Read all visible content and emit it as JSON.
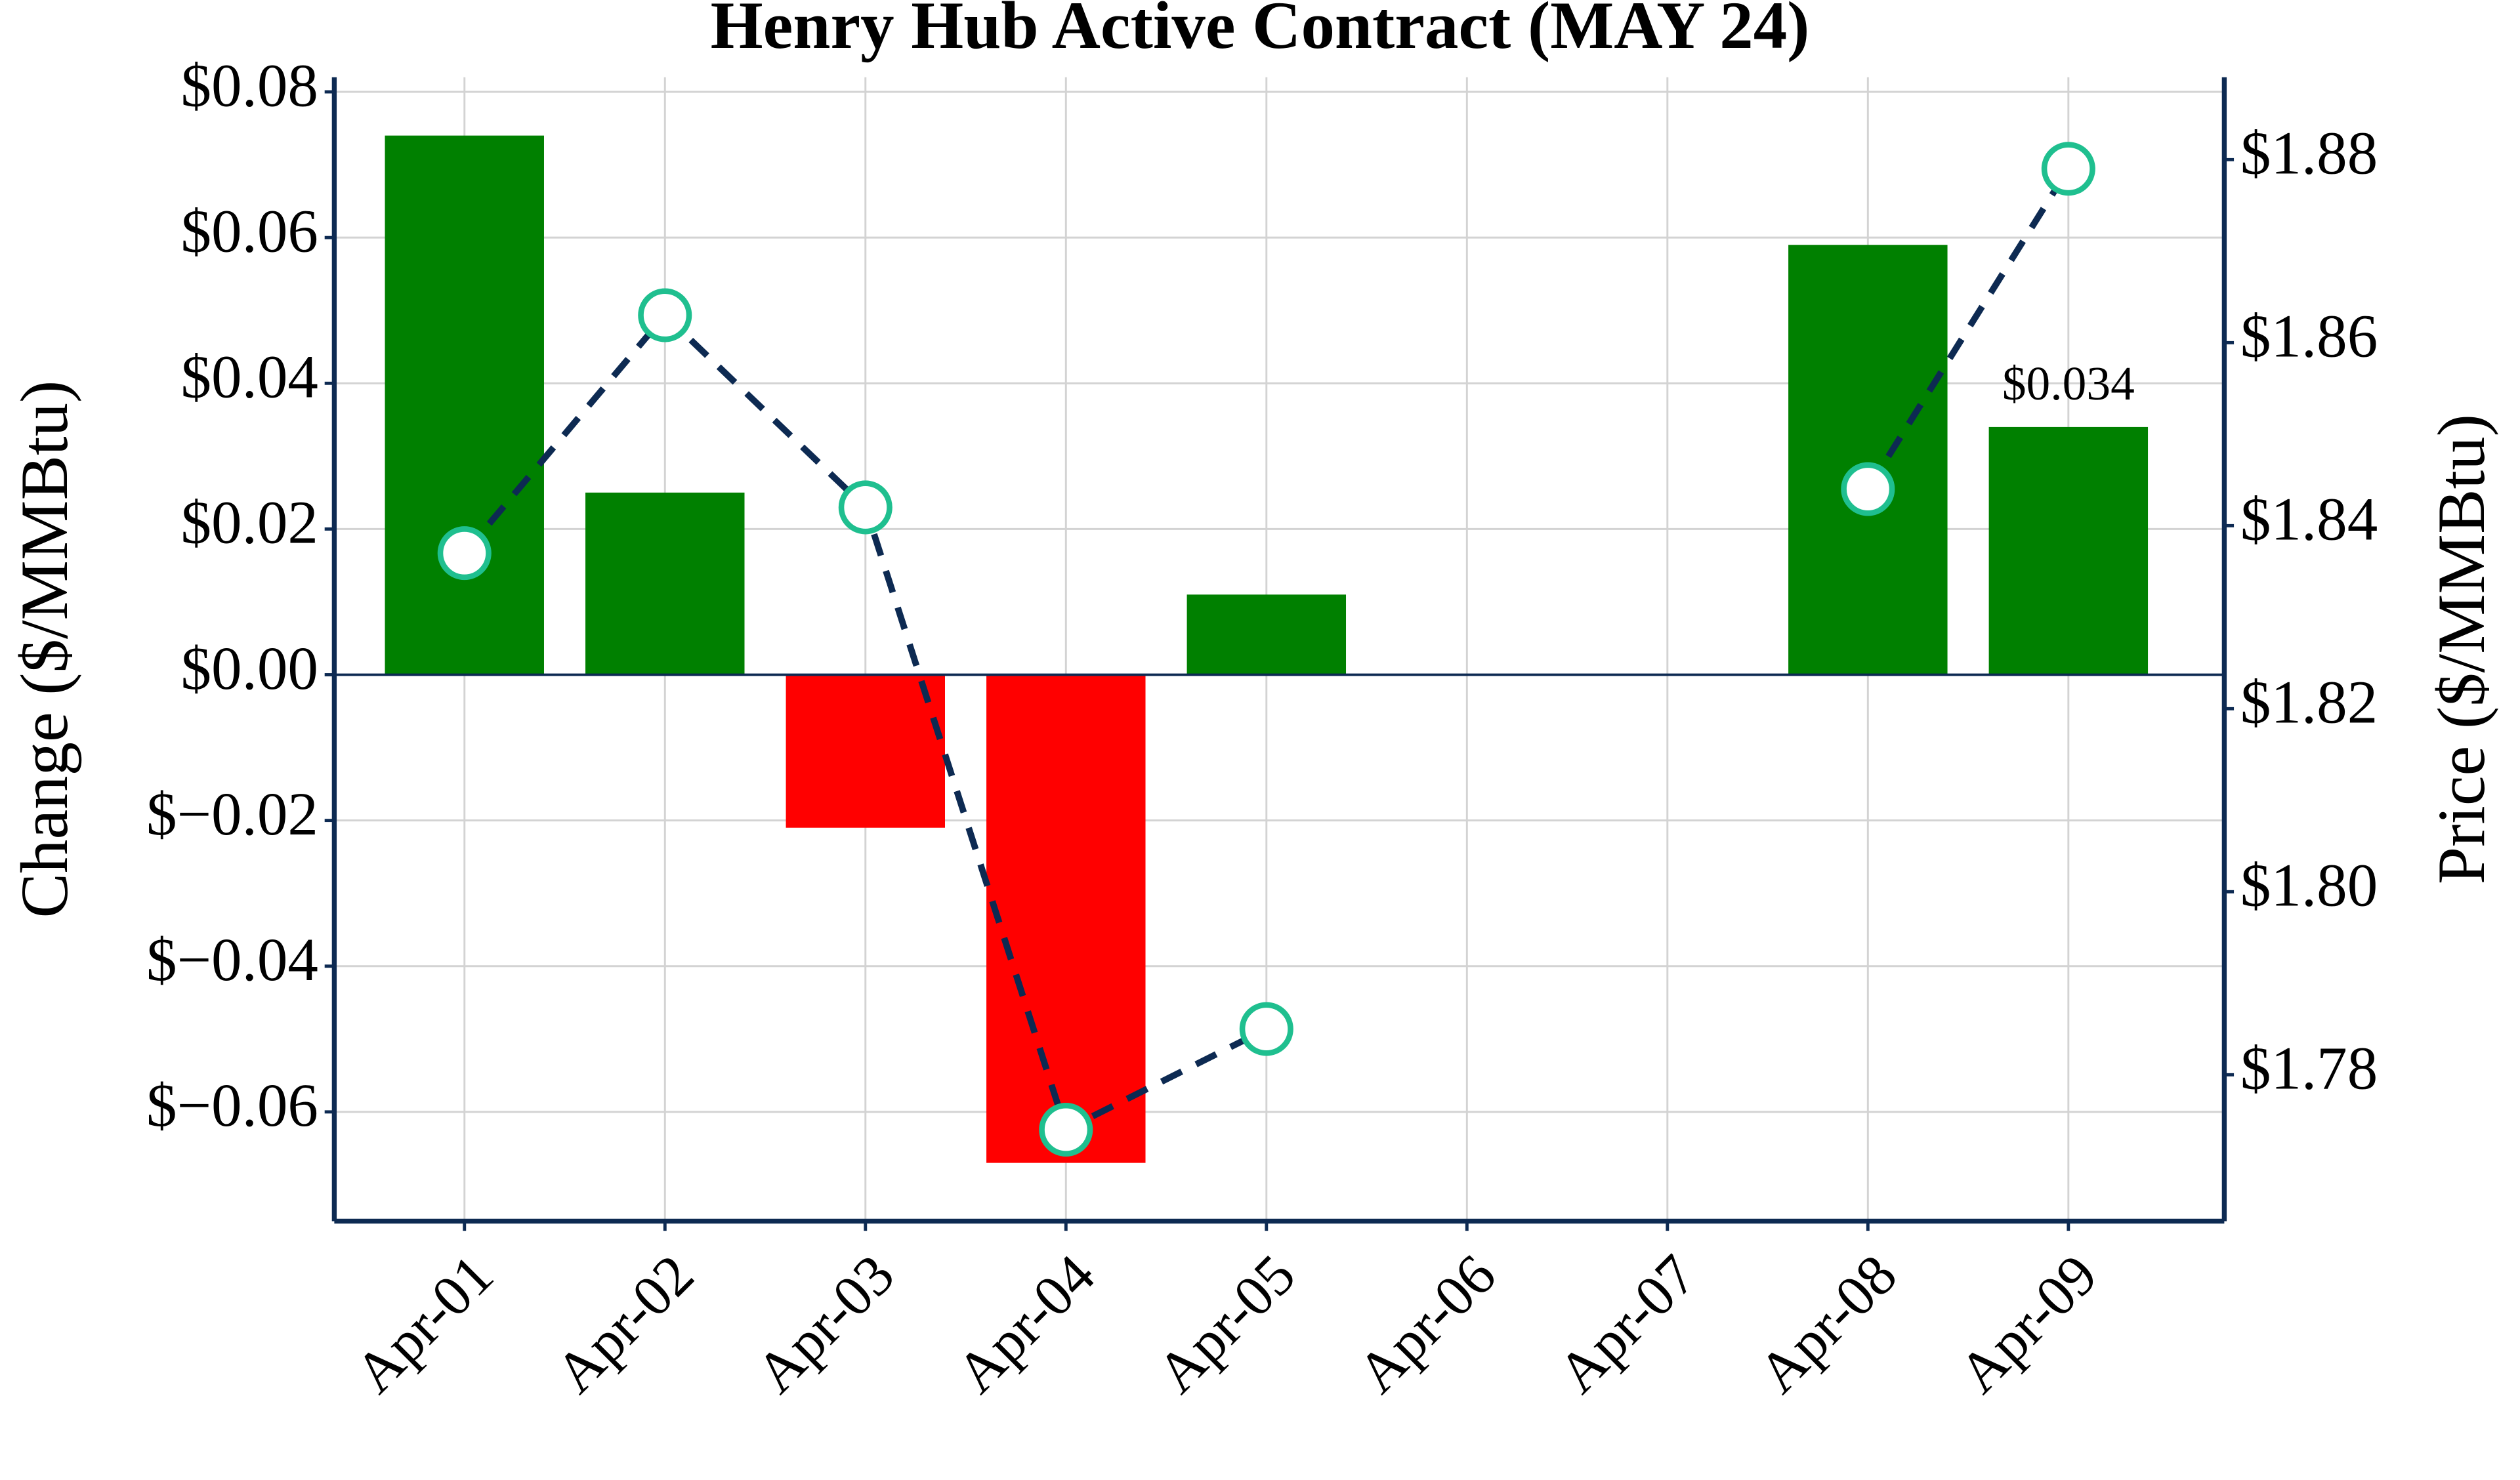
{
  "chart_data": {
    "type": "bar",
    "title": "Henry Hub Active Contract (MAY 24)",
    "y_label": "Change ($/MMBtu)",
    "y2_label": "Price ($/MMBtu)",
    "categories": [
      "Apr-01",
      "Apr-02",
      "Apr-03",
      "Apr-04",
      "Apr-05",
      "Apr-06",
      "Apr-07",
      "Apr-08",
      "Apr-09"
    ],
    "series": [
      {
        "type": "bar",
        "color": "#008000",
        "negative_color": "#ff0000",
        "values": [
          0.074,
          0.025,
          -0.021,
          -0.067,
          0.011,
          null,
          null,
          0.059,
          0.034
        ],
        "value_labels": [
          null,
          null,
          null,
          null,
          null,
          null,
          null,
          null,
          "$0.034"
        ]
      },
      {
        "type": "line",
        "axis": "y2",
        "color": "#0d2a52",
        "marker_color": "#1fbf8f",
        "dashed": true,
        "values": [
          1.837,
          1.863,
          1.842,
          1.774,
          1.785,
          null,
          null,
          1.844,
          1.879
        ]
      }
    ],
    "ylim": [
      -0.075,
      0.082
    ],
    "yticks": [
      {
        "value": -0.06,
        "label": "$−0.06"
      },
      {
        "value": -0.04,
        "label": "$−0.04"
      },
      {
        "value": -0.02,
        "label": "$−0.02"
      },
      {
        "value": 0,
        "label": "$0.00"
      },
      {
        "value": 0.02,
        "label": "$0.02"
      },
      {
        "value": 0.04,
        "label": "$0.04"
      },
      {
        "value": 0.06,
        "label": "$0.06"
      },
      {
        "value": 0.08,
        "label": "$0.08"
      }
    ],
    "y2lim": [
      1.764,
      1.889
    ],
    "y2ticks": [
      {
        "value": 1.78,
        "label": "$1.78"
      },
      {
        "value": 1.8,
        "label": "$1.80"
      },
      {
        "value": 1.82,
        "label": "$1.82"
      },
      {
        "value": 1.84,
        "label": "$1.84"
      },
      {
        "value": 1.86,
        "label": "$1.86"
      },
      {
        "value": 1.88,
        "label": "$1.88"
      }
    ],
    "grid": true
  }
}
